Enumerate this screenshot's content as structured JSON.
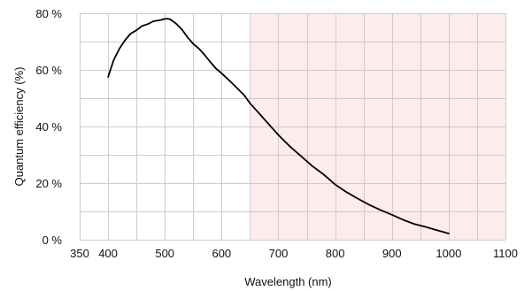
{
  "chart_data": {
    "type": "line",
    "xlabel": "Wavelength (nm)",
    "ylabel": "Quantum efficiency (%)",
    "xlim": [
      350,
      1100
    ],
    "ylim": [
      0,
      80
    ],
    "x_ticks": [
      350,
      400,
      500,
      600,
      700,
      800,
      900,
      1000,
      1100
    ],
    "x_tick_labels": [
      "350",
      "400",
      "500",
      "600",
      "700",
      "800",
      "900",
      "1000",
      "1100"
    ],
    "y_ticks": [
      0,
      20,
      40,
      60,
      80
    ],
    "y_tick_labels": [
      "0 %",
      "20 %",
      "40 %",
      "60 %",
      "80 %"
    ],
    "grid": true,
    "x_minor_step": 50,
    "y_minor_step": 10,
    "shaded_region": {
      "x_start": 650,
      "x_end": 1100,
      "color": "#fdeceb"
    },
    "series": [
      {
        "color": "#000000",
        "x": [
          400,
          410,
          420,
          430,
          440,
          450,
          460,
          470,
          480,
          490,
          500,
          505,
          510,
          520,
          530,
          540,
          550,
          560,
          570,
          580,
          590,
          600,
          620,
          640,
          650,
          660,
          680,
          700,
          720,
          740,
          760,
          780,
          800,
          820,
          840,
          860,
          880,
          900,
          920,
          940,
          960,
          980,
          1000
        ],
        "y": [
          57.5,
          63.5,
          67.5,
          70.5,
          72.8,
          74.0,
          75.5,
          76.2,
          77.2,
          77.5,
          78.0,
          78.1,
          77.8,
          76.3,
          74.3,
          71.5,
          69.2,
          67.5,
          65.3,
          62.8,
          60.5,
          58.8,
          55.0,
          51.0,
          48.2,
          46.0,
          41.5,
          37.0,
          33.0,
          29.5,
          26.0,
          23.0,
          19.5,
          16.8,
          14.5,
          12.3,
          10.5,
          8.8,
          7.0,
          5.5,
          4.5,
          3.3,
          2.2
        ]
      }
    ]
  }
}
